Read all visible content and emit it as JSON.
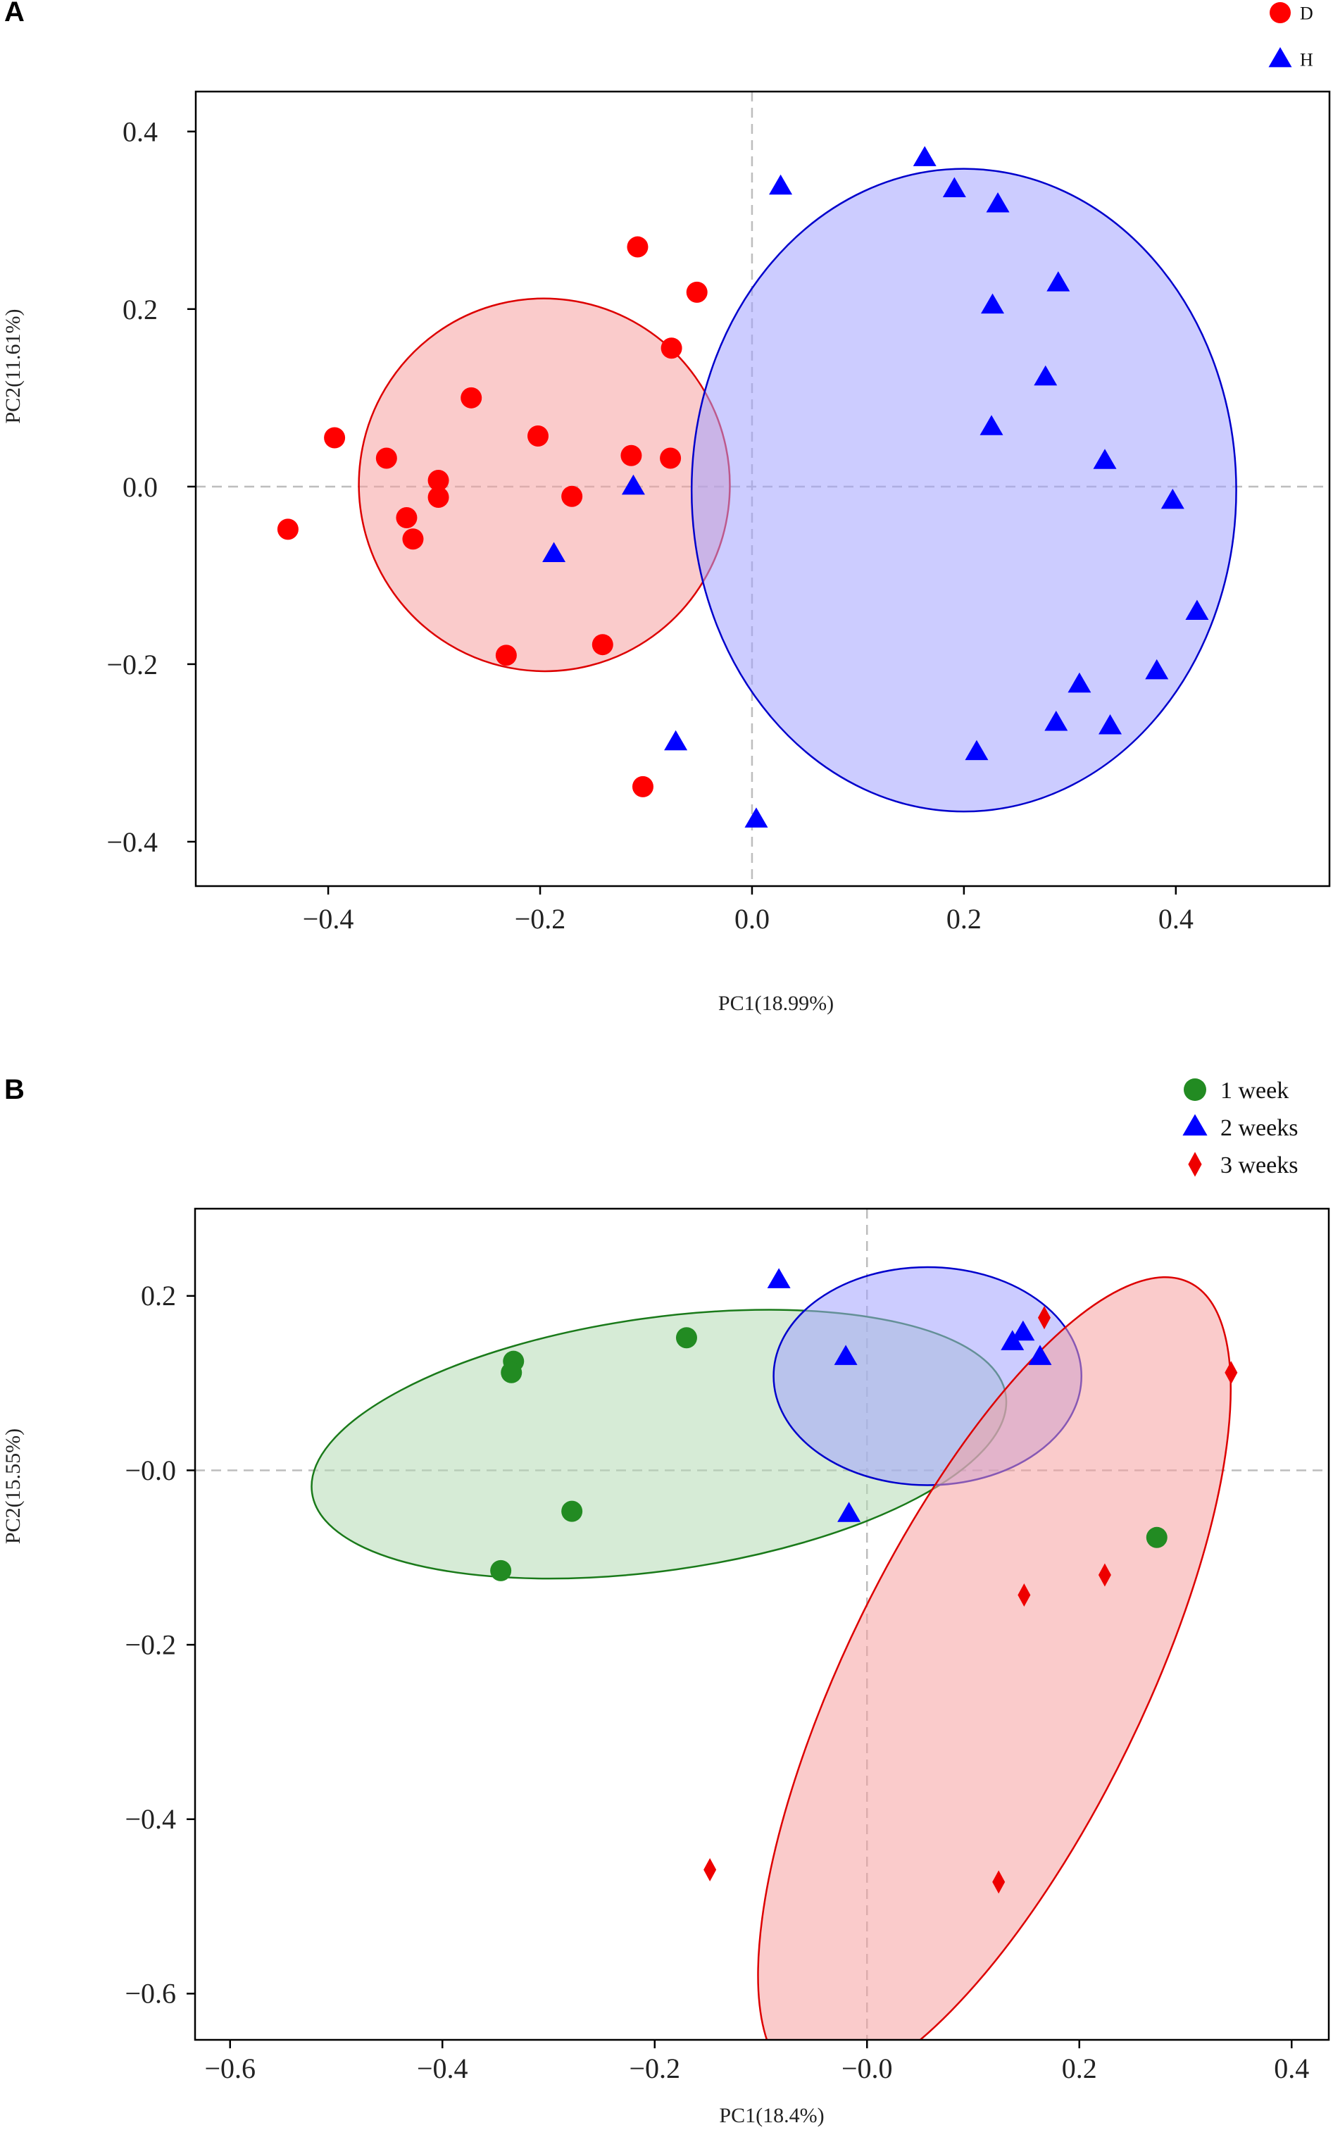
{
  "chart_data": [
    {
      "type": "scatter",
      "panel": "A",
      "title": "",
      "xlabel": "PC1(18.99%)",
      "ylabel": "PC2(11.61%)",
      "xlim": [
        -0.525,
        0.545
      ],
      "ylim": [
        -0.45,
        0.445
      ],
      "xticks": [
        {
          "v": -0.4,
          "label": "−0.4"
        },
        {
          "v": -0.2,
          "label": "−0.2"
        },
        {
          "v": 0.0,
          "label": "0.0"
        },
        {
          "v": 0.2,
          "label": "0.2"
        },
        {
          "v": 0.4,
          "label": "0.4"
        }
      ],
      "yticks": [
        {
          "v": 0.4,
          "label": "0.4"
        },
        {
          "v": 0.2,
          "label": "0.2"
        },
        {
          "v": 0.0,
          "label": "0.0"
        },
        {
          "v": -0.2,
          "label": "−0.2"
        },
        {
          "v": -0.4,
          "label": "−0.4"
        }
      ],
      "grid": false,
      "legend_position": "top-right",
      "series": [
        {
          "name": "D",
          "marker": "circle",
          "color": "#ff0000",
          "points": [
            [
              -0.438,
              -0.048
            ],
            [
              -0.394,
              0.055
            ],
            [
              -0.345,
              0.032
            ],
            [
              -0.326,
              -0.035
            ],
            [
              -0.32,
              -0.059
            ],
            [
              -0.296,
              0.007
            ],
            [
              -0.296,
              -0.012
            ],
            [
              -0.265,
              0.1
            ],
            [
              -0.202,
              0.057
            ],
            [
              -0.17,
              -0.011
            ],
            [
              -0.232,
              -0.19
            ],
            [
              -0.141,
              -0.178
            ],
            [
              -0.114,
              0.035
            ],
            [
              -0.108,
              0.27
            ],
            [
              -0.076,
              0.156
            ],
            [
              -0.077,
              0.032
            ],
            [
              -0.052,
              0.219
            ],
            [
              -0.103,
              -0.338
            ]
          ]
        },
        {
          "name": "H",
          "marker": "triangle",
          "color": "#0000ff",
          "points": [
            [
              -0.112,
              0.0
            ],
            [
              -0.187,
              -0.076
            ],
            [
              -0.072,
              -0.288
            ],
            [
              0.004,
              -0.375
            ],
            [
              0.027,
              0.338
            ],
            [
              0.163,
              0.37
            ],
            [
              0.191,
              0.335
            ],
            [
              0.232,
              0.318
            ],
            [
              0.227,
              0.204
            ],
            [
              0.289,
              0.229
            ],
            [
              0.277,
              0.123
            ],
            [
              0.226,
              0.067
            ],
            [
              0.333,
              0.029
            ],
            [
              0.397,
              -0.016
            ],
            [
              0.42,
              -0.141
            ],
            [
              0.382,
              -0.208
            ],
            [
              0.309,
              -0.223
            ],
            [
              0.338,
              -0.27
            ],
            [
              0.287,
              -0.266
            ],
            [
              0.212,
              -0.299
            ]
          ]
        }
      ],
      "ellipses": [
        {
          "group": "D",
          "cx": -0.196,
          "cy": 0.002,
          "rx": 0.175,
          "ry": 0.21,
          "angle_deg": -14,
          "fill": "#f5a0a0",
          "stroke": "#dd0000"
        },
        {
          "group": "H",
          "cx": 0.2,
          "cy": -0.004,
          "rx": 0.257,
          "ry": 0.362,
          "angle_deg": 0,
          "fill": "#a3a3ff",
          "stroke": "#0000cc"
        }
      ]
    },
    {
      "type": "scatter",
      "panel": "B",
      "title": "",
      "xlabel": "PC1(18.4%)",
      "ylabel": "PC2(15.55%)",
      "xlim": [
        -0.633,
        0.435
      ],
      "ylim": [
        -0.653,
        0.3
      ],
      "xticks": [
        {
          "v": -0.6,
          "label": "−0.6"
        },
        {
          "v": -0.4,
          "label": "−0.4"
        },
        {
          "v": -0.2,
          "label": "−0.2"
        },
        {
          "v": 0.0,
          "label": "−0.0"
        },
        {
          "v": 0.2,
          "label": "0.2"
        },
        {
          "v": 0.4,
          "label": "0.4"
        }
      ],
      "yticks": [
        {
          "v": 0.2,
          "label": "0.2"
        },
        {
          "v": 0.0,
          "label": "−0.0"
        },
        {
          "v": -0.2,
          "label": "−0.2"
        },
        {
          "v": -0.4,
          "label": "−0.4"
        },
        {
          "v": -0.6,
          "label": "−0.6"
        }
      ],
      "grid": false,
      "legend_position": "top-right",
      "series": [
        {
          "name": "1 week",
          "marker": "circle",
          "color": "#228b22",
          "points": [
            [
              -0.333,
              0.125
            ],
            [
              -0.335,
              0.112
            ],
            [
              -0.17,
              0.152
            ],
            [
              -0.278,
              -0.047
            ],
            [
              -0.345,
              -0.115
            ],
            [
              0.273,
              -0.077
            ]
          ]
        },
        {
          "name": "2 weeks",
          "marker": "triangle",
          "color": "#0000ff",
          "points": [
            [
              -0.083,
              0.218
            ],
            [
              -0.02,
              0.13
            ],
            [
              0.137,
              0.147
            ],
            [
              0.147,
              0.158
            ],
            [
              0.163,
              0.13
            ],
            [
              -0.017,
              -0.05
            ]
          ]
        },
        {
          "name": "3 weeks",
          "marker": "diamond",
          "color": "#ee0000",
          "points": [
            [
              0.167,
              0.175
            ],
            [
              0.343,
              0.112
            ],
            [
              0.148,
              -0.143
            ],
            [
              0.224,
              -0.12
            ],
            [
              -0.148,
              -0.458
            ],
            [
              0.124,
              -0.472
            ]
          ]
        }
      ],
      "ellipses": [
        {
          "group": "1 week",
          "cx": -0.196,
          "cy": 0.03,
          "rx": 0.33,
          "ry": 0.145,
          "angle_deg": -8,
          "fill": "#b5dbb5",
          "stroke": "#1a7a1a"
        },
        {
          "group": "2 weeks",
          "cx": 0.057,
          "cy": 0.108,
          "rx": 0.145,
          "ry": 0.125,
          "angle_deg": 0,
          "fill": "#a3a3ff",
          "stroke": "#0000cc"
        },
        {
          "group": "3 weeks",
          "cx": 0.12,
          "cy": -0.243,
          "rx": 0.14,
          "ry": 0.51,
          "angle_deg": 26,
          "fill": "#f5a0a0",
          "stroke": "#dd0000"
        }
      ]
    }
  ]
}
